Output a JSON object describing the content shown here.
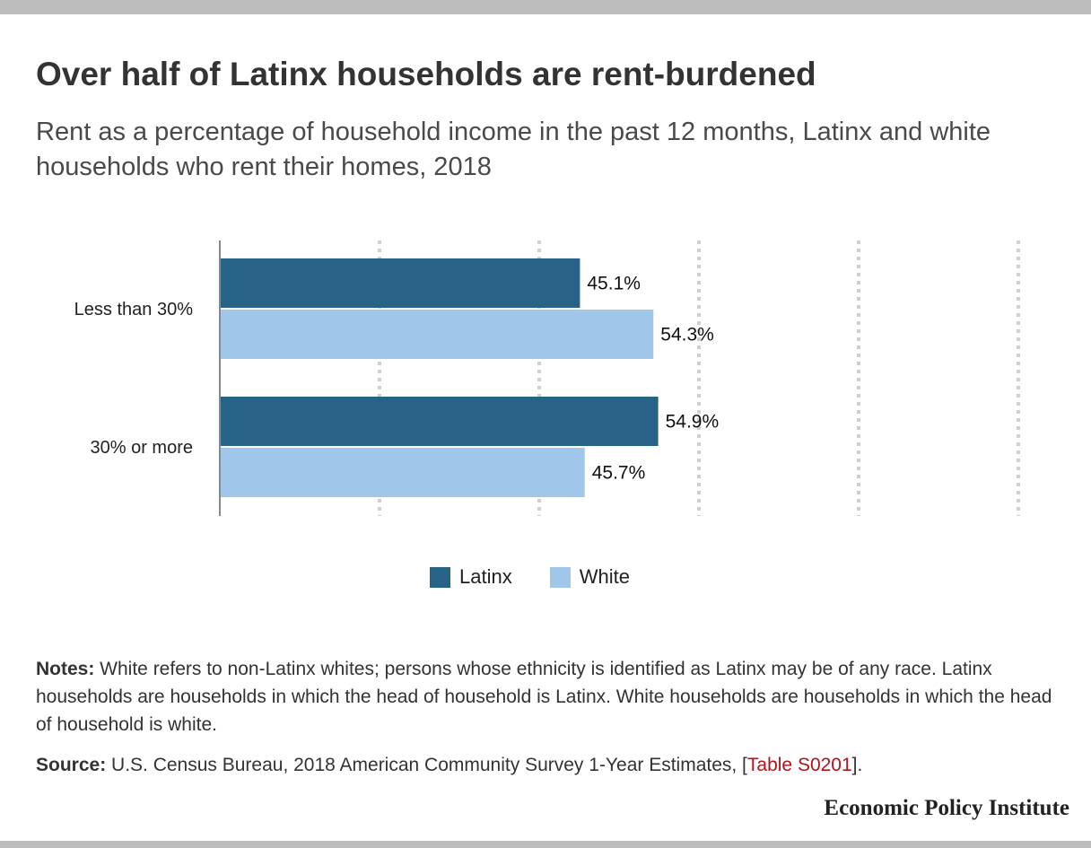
{
  "title": "Over half of Latinx households are rent-burdened",
  "subtitle": "Rent as a percentage of household income in the past 12 months, Latinx and white households who rent their homes, 2018",
  "chart_data": {
    "type": "bar",
    "orientation": "horizontal",
    "title": "Over half of Latinx households are rent-burdened",
    "subtitle": "Rent as a percentage of household income in the past 12 months, Latinx and white households who rent their homes, 2018",
    "categories": [
      "Less than 30%",
      "30% or more"
    ],
    "series": [
      {
        "name": "Latinx",
        "color": "#266386",
        "values": [
          45.1,
          54.9
        ],
        "labels": [
          "45.1%",
          "54.9%"
        ]
      },
      {
        "name": "White",
        "color": "#a0c6e9",
        "values": [
          54.3,
          45.7
        ],
        "labels": [
          "54.3%",
          "45.7%"
        ]
      }
    ],
    "xlim": [
      0,
      100
    ],
    "grid": true,
    "legend": "bottom-center",
    "xlabel": "",
    "ylabel": ""
  },
  "legend": [
    {
      "label": "Latinx",
      "color": "#266386"
    },
    {
      "label": "White",
      "color": "#a0c6e9"
    }
  ],
  "notes": {
    "label": "Notes:",
    "text": " White refers to non-Latinx whites; persons whose ethnicity is identified as Latinx may be of any race. Latinx households are households in which the head of household is Latinx. White households are households in which the head of household is white."
  },
  "source": {
    "label": "Source:",
    "text": " U.S. Census Bureau, 2018 American Community Survey 1-Year Estimates, [",
    "link_text": "Table S0201",
    "after": "]."
  },
  "brand": "Economic Policy Institute"
}
